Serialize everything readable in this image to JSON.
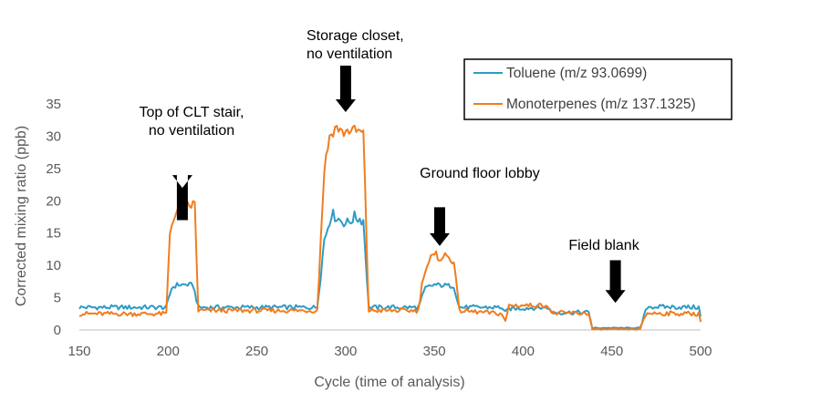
{
  "chart_data": {
    "type": "line",
    "title": "",
    "xlabel": "Cycle (time of analysis)",
    "ylabel": "Corrected mixing ratio (ppb)",
    "xlim": [
      150,
      500
    ],
    "ylim": [
      0,
      35
    ],
    "xticks": [
      150,
      200,
      250,
      300,
      350,
      400,
      450,
      500
    ],
    "yticks": [
      0,
      5,
      10,
      15,
      20,
      25,
      30,
      35
    ],
    "grid": false,
    "legend": "top-right",
    "colors": {
      "toluene": "#2E9BC6",
      "monoterpenes": "#F07D1E",
      "arrow": "#000000"
    },
    "series": [
      {
        "name": "Toluene (m/z 93.0699)",
        "key": "toluene",
        "points": [
          [
            150,
            3.5
          ],
          [
            199,
            3.5
          ],
          [
            202,
            6.5
          ],
          [
            205,
            7.0
          ],
          [
            214,
            7.0
          ],
          [
            217,
            3.5
          ],
          [
            284,
            3.5
          ],
          [
            288,
            14.0
          ],
          [
            292,
            18.0
          ],
          [
            297,
            17.0
          ],
          [
            301,
            16.5
          ],
          [
            305,
            17.5
          ],
          [
            310,
            17.0
          ],
          [
            313,
            3.5
          ],
          [
            341,
            3.5
          ],
          [
            345,
            6.5
          ],
          [
            350,
            7.0
          ],
          [
            361,
            6.8
          ],
          [
            364,
            3.5
          ],
          [
            388,
            3.5
          ],
          [
            390,
            2.6
          ],
          [
            392,
            3.3
          ],
          [
            414,
            3.5
          ],
          [
            416,
            2.7
          ],
          [
            437,
            2.7
          ],
          [
            439,
            0.3
          ],
          [
            466,
            0.3
          ],
          [
            468,
            2.0
          ],
          [
            470,
            3.6
          ],
          [
            499,
            3.5
          ],
          [
            500,
            2.0
          ]
        ]
      },
      {
        "name": "Monoterpenes (m/z 137.1325)",
        "key": "monoterpenes",
        "points": [
          [
            150,
            2.5
          ],
          [
            199,
            2.5
          ],
          [
            201,
            15.0
          ],
          [
            203,
            17.5
          ],
          [
            206,
            18.5
          ],
          [
            210,
            19.0
          ],
          [
            215,
            19.5
          ],
          [
            217,
            3.0
          ],
          [
            284,
            3.0
          ],
          [
            288,
            25.0
          ],
          [
            291,
            30.0
          ],
          [
            295,
            31.5
          ],
          [
            298,
            30.5
          ],
          [
            303,
            31.0
          ],
          [
            310,
            30.5
          ],
          [
            313,
            3.0
          ],
          [
            341,
            3.0
          ],
          [
            344,
            9.0
          ],
          [
            348,
            11.0
          ],
          [
            353,
            11.5
          ],
          [
            361,
            11.0
          ],
          [
            364,
            3.0
          ],
          [
            388,
            2.5
          ],
          [
            390,
            1.2
          ],
          [
            392,
            3.8
          ],
          [
            414,
            3.8
          ],
          [
            416,
            2.6
          ],
          [
            437,
            2.6
          ],
          [
            439,
            0.1
          ],
          [
            466,
            0.1
          ],
          [
            468,
            1.8
          ],
          [
            470,
            2.6
          ],
          [
            499,
            2.5
          ],
          [
            500,
            1.5
          ]
        ]
      }
    ],
    "annotations": [
      {
        "lines": [
          "Top of CLT stair,",
          "no ventilation"
        ],
        "x": 208,
        "arrow_top": 17,
        "arrow_tip": 22
      },
      {
        "lines": [
          "Storage closet,",
          "no ventilation"
        ],
        "x": 300,
        "arrow_top": 33,
        "arrow_tip": 33.5
      },
      {
        "lines": [
          "Ground floor lobby"
        ],
        "x": 353,
        "arrow_top": 19,
        "arrow_tip": 13
      },
      {
        "lines": [
          "Field blank"
        ],
        "x": 452,
        "arrow_top": 10.8,
        "arrow_tip": 4.2
      }
    ]
  }
}
